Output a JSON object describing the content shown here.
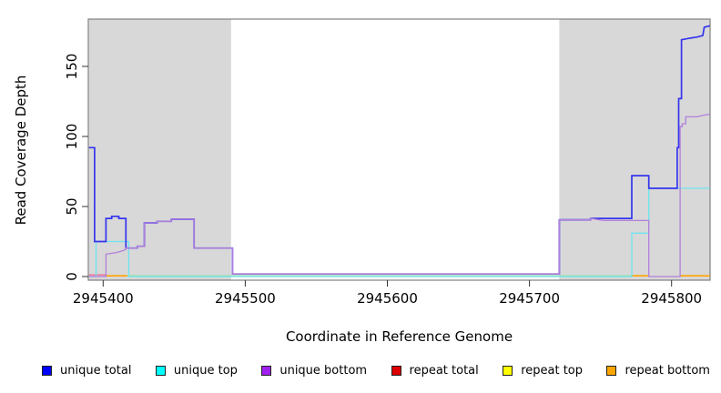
{
  "chart_data": {
    "type": "line",
    "subtype": "step-coverage-plot",
    "title": "",
    "xlabel": "Coordinate in Reference Genome",
    "ylabel": "Read Coverage Depth",
    "xlim": [
      2945390,
      2945827
    ],
    "ylim": [
      0,
      184
    ],
    "x_ticks": [
      {
        "value": 2945400,
        "label": "2945400"
      },
      {
        "value": 2945500,
        "label": "2945500"
      },
      {
        "value": 2945600,
        "label": "2945600"
      },
      {
        "value": 2945700,
        "label": "2945700"
      },
      {
        "value": 2945800,
        "label": "2945800"
      }
    ],
    "y_ticks": [
      {
        "value": 0,
        "label": "0"
      },
      {
        "value": 50,
        "label": "50"
      },
      {
        "value": 100,
        "label": "100"
      },
      {
        "value": 150,
        "label": "150"
      }
    ],
    "grid": false,
    "plot_bg": "#ffffff",
    "shaded_regions": [
      {
        "name": "left-gray-band",
        "from": 2945390,
        "to": 2945490,
        "color": "#d8d8d8"
      },
      {
        "name": "right-gray-band",
        "from": 2945721,
        "to": 2945827,
        "color": "#d8d8d8"
      }
    ],
    "series": [
      {
        "name": "unique top",
        "color": "#6de4ee",
        "render_as_line": true,
        "width": 1.3,
        "points": [
          [
            2945390,
            0
          ],
          [
            2945395,
            0
          ],
          [
            2945395,
            25
          ],
          [
            2945418,
            25
          ],
          [
            2945418,
            0
          ],
          [
            2945772,
            0
          ],
          [
            2945772,
            31
          ],
          [
            2945784,
            31
          ],
          [
            2945784,
            63
          ],
          [
            2945827,
            63
          ]
        ]
      },
      {
        "name": "unique total",
        "color": "#3434ee",
        "render_as_line": true,
        "width": 1.7,
        "points": [
          [
            2945390,
            92
          ],
          [
            2945394,
            92
          ],
          [
            2945394,
            25
          ],
          [
            2945402,
            25
          ],
          [
            2945402,
            41.5
          ],
          [
            2945406,
            41.5
          ],
          [
            2945406,
            43
          ],
          [
            2945411,
            43
          ],
          [
            2945411,
            41.5
          ],
          [
            2945416,
            41.5
          ],
          [
            2945416,
            20.3
          ],
          [
            2945424,
            20.3
          ],
          [
            2945424,
            21.6
          ],
          [
            2945429,
            21.6
          ],
          [
            2945429,
            38.3
          ],
          [
            2945438,
            38.3
          ],
          [
            2945438,
            39.4
          ],
          [
            2945448,
            39.4
          ],
          [
            2945448,
            40.9
          ],
          [
            2945464,
            40.9
          ],
          [
            2945464,
            20.3
          ],
          [
            2945491,
            20.3
          ],
          [
            2945491,
            1.8
          ],
          [
            2945721,
            1.8
          ],
          [
            2945721,
            40.5
          ],
          [
            2945743,
            40.5
          ],
          [
            2945743,
            41.5
          ],
          [
            2945772,
            41.5
          ],
          [
            2945772,
            72
          ],
          [
            2945784,
            72
          ],
          [
            2945784,
            63
          ],
          [
            2945804,
            63
          ],
          [
            2945804,
            92
          ],
          [
            2945805,
            92
          ],
          [
            2945805,
            127
          ],
          [
            2945807,
            127
          ],
          [
            2945807,
            169
          ],
          [
            2945812,
            170
          ],
          [
            2945818,
            171
          ],
          [
            2945822,
            172
          ],
          [
            2945823,
            178
          ],
          [
            2945827,
            179
          ]
        ]
      },
      {
        "name": "unique bottom",
        "color": "#b27fd9",
        "render_as_line": true,
        "width": 1.3,
        "points": [
          [
            2945390,
            0
          ],
          [
            2945402,
            0
          ],
          [
            2945402,
            16
          ],
          [
            2945409,
            17
          ],
          [
            2945414,
            18.5
          ],
          [
            2945416,
            19.5
          ],
          [
            2945416,
            20.3
          ],
          [
            2945424,
            20.3
          ],
          [
            2945424,
            21.6
          ],
          [
            2945429,
            21.6
          ],
          [
            2945429,
            38.3
          ],
          [
            2945438,
            38.3
          ],
          [
            2945438,
            39.4
          ],
          [
            2945448,
            39.4
          ],
          [
            2945448,
            40.9
          ],
          [
            2945464,
            40.9
          ],
          [
            2945464,
            20.3
          ],
          [
            2945491,
            20.3
          ],
          [
            2945491,
            1.8
          ],
          [
            2945721,
            1.8
          ],
          [
            2945721,
            40.5
          ],
          [
            2945743,
            40.5
          ],
          [
            2945743,
            41.5
          ],
          [
            2945752,
            40
          ],
          [
            2945784,
            40
          ],
          [
            2945784,
            0
          ],
          [
            2945806,
            0
          ],
          [
            2945806,
            107
          ],
          [
            2945807.5,
            107
          ],
          [
            2945807.5,
            109
          ],
          [
            2945810,
            109
          ],
          [
            2945810,
            114
          ],
          [
            2945818,
            114
          ],
          [
            2945822,
            115
          ],
          [
            2945827,
            116
          ]
        ]
      },
      {
        "name": "repeat total",
        "color": "#dd0000",
        "render_as_line": false,
        "width": 1.3,
        "points": [
          [
            2945390,
            0
          ],
          [
            2945827,
            0
          ]
        ]
      },
      {
        "name": "repeat top",
        "color": "#ffff00",
        "render_as_line": false,
        "width": 1.3,
        "points": [
          [
            2945390,
            0
          ],
          [
            2945827,
            0
          ]
        ]
      },
      {
        "name": "repeat bottom",
        "color": "#ffa500",
        "render_as_line": false,
        "width": 1.3,
        "points": [
          [
            2945390,
            0
          ],
          [
            2945827,
            0
          ]
        ]
      }
    ],
    "baseline_segments": [
      {
        "color": "#e87f9f",
        "from": 2945390,
        "to": 2945402,
        "y": 1.2
      },
      {
        "color": "#ffa500",
        "from": 2945402,
        "to": 2945417,
        "y": 0.5
      },
      {
        "color": "#9fe0a8",
        "from": 2945417,
        "to": 2945772,
        "y": 0.5
      },
      {
        "color": "#ffa500",
        "from": 2945772,
        "to": 2945784,
        "y": 0.5
      },
      {
        "color": "#ffa500",
        "from": 2945806,
        "to": 2945827,
        "y": 0.5
      }
    ],
    "legend": [
      {
        "label": "unique total",
        "color": "#0000ff"
      },
      {
        "label": "unique top",
        "color": "#00ffff"
      },
      {
        "label": "unique bottom",
        "color": "#a020f0"
      },
      {
        "label": "repeat total",
        "color": "#dd0000"
      },
      {
        "label": "repeat top",
        "color": "#ffff00"
      },
      {
        "label": "repeat bottom",
        "color": "#ffa500"
      }
    ],
    "legend_position": "bottom",
    "box_color": "#808080",
    "text_color": "#000000"
  }
}
